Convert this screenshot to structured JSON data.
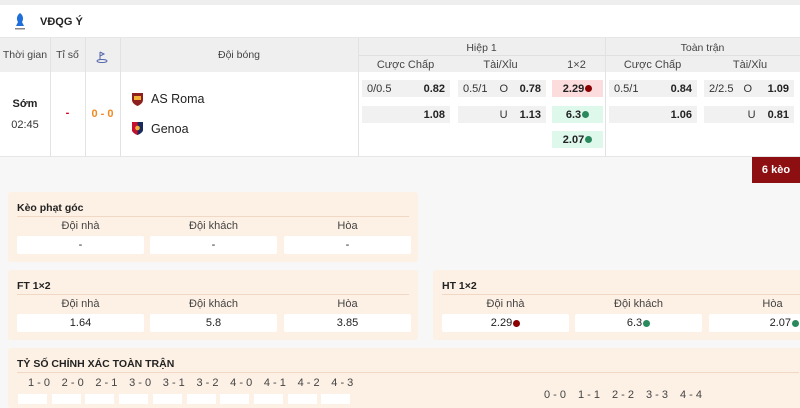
{
  "league": {
    "name": "VĐQG Ý",
    "logo_icon": "serie-a-logo"
  },
  "table": {
    "headers": {
      "time": "Thời gian",
      "score": "Tỉ số",
      "corner_icon": "corner-flag-icon",
      "teams": "Đội bóng",
      "half": "Hiệp 1",
      "full": "Toàn trận",
      "handicap": "Cược Chấp",
      "over_under": "Tài/Xỉu",
      "one_x_two": "1×2"
    },
    "match": {
      "status": "Sớm",
      "time": "02:45",
      "score": "-",
      "ht_score": "0 - 0",
      "home": "AS Roma",
      "away": "Genoa",
      "h1": {
        "hdp_line": "0/0.5",
        "hdp_home": "0.82",
        "hdp_away": "1.08",
        "ou_line": "0.5/1",
        "over_label": "O",
        "over": "0.78",
        "under_label": "U",
        "under": "1.13",
        "x1": "2.29",
        "x2": "6.3",
        "xd": "2.07"
      },
      "ft": {
        "hdp_line": "0.5/1",
        "hdp_home": "0.84",
        "hdp_away": "1.06",
        "ou_line": "2/2.5",
        "over_label": "O",
        "over": "1.09",
        "under_label": "U",
        "under": "0.81"
      }
    },
    "more_button": "6 kèo"
  },
  "colors": {
    "accent": "#8e0f12",
    "up": "#2a8a5e",
    "down": "#8b0000"
  },
  "panels": {
    "corner": {
      "title": "Kèo phạt góc",
      "labels": [
        "Đội nhà",
        "Đội khách",
        "Hòa"
      ],
      "values": [
        "-",
        "-",
        "-"
      ]
    },
    "ft": {
      "title": "FT 1×2",
      "labels": [
        "Đội nhà",
        "Đội khách",
        "Hòa"
      ],
      "values": [
        "1.64",
        "5.8",
        "3.85"
      ]
    },
    "ht": {
      "title": "HT 1×2",
      "labels": [
        "Đội nhà",
        "Đội khách",
        "Hòa"
      ],
      "values": [
        "2.29",
        "6.3",
        "2.07"
      ]
    },
    "exact": {
      "title": "TỶ SỐ CHÍNH XÁC TOÀN TRẬN",
      "home_scores": [
        "1 - 0",
        "2 - 0",
        "2 - 1",
        "3 - 0",
        "3 - 1",
        "3 - 2",
        "4 - 0",
        "4 - 1",
        "4 - 2",
        "4 - 3"
      ],
      "draw_scores": [
        "0 - 0",
        "1 - 1",
        "2 - 2",
        "3 - 3",
        "4 - 4"
      ]
    }
  }
}
